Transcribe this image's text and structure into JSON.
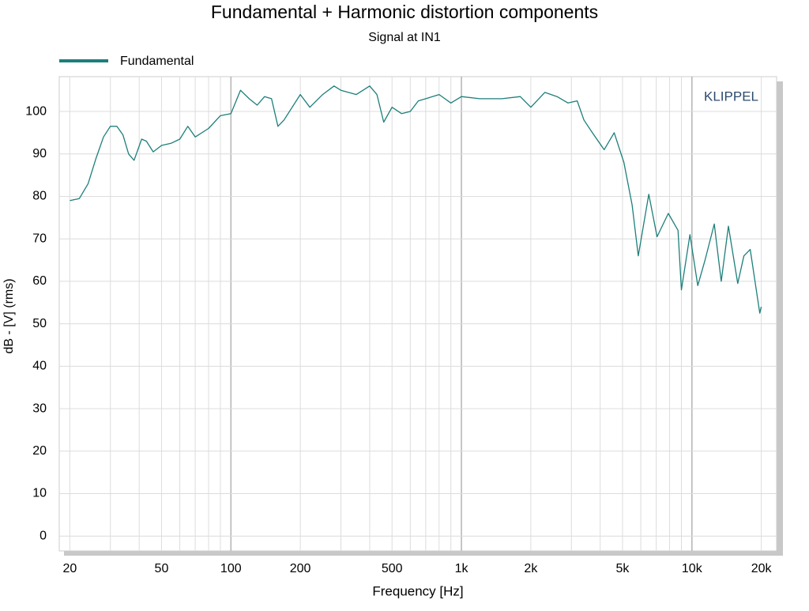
{
  "chart_data": {
    "type": "line",
    "title": "Fundamental + Harmonic distortion components",
    "subtitle": "Signal at IN1",
    "x_label": "Frequency [Hz]",
    "y_label": "dB - [V]  (rms)",
    "annotation": "KLIPPEL",
    "x_log": true,
    "grid": true,
    "legend": "top-left",
    "xlim": [
      18,
      23300
    ],
    "ylim": [
      -3.5,
      108.2
    ],
    "yticks": [
      0,
      10,
      20,
      30,
      40,
      50,
      60,
      70,
      80,
      90,
      100
    ],
    "xticks": [
      20,
      50,
      100,
      200,
      500,
      {
        "value": 1000,
        "label": "1k"
      },
      {
        "value": 2000,
        "label": "2k"
      },
      {
        "value": 5000,
        "label": "5k"
      },
      {
        "value": 10000,
        "label": "10k"
      },
      {
        "value": 20000,
        "label": "20k"
      }
    ],
    "xminor": [
      20,
      30,
      40,
      50,
      60,
      70,
      80,
      90,
      100,
      200,
      300,
      400,
      500,
      600,
      700,
      800,
      900,
      1000,
      2000,
      3000,
      4000,
      5000,
      6000,
      7000,
      8000,
      9000,
      10000,
      20000
    ],
    "xmajor": [
      100,
      1000,
      10000
    ],
    "x": [
      20,
      22,
      24,
      26,
      28,
      30,
      32,
      34,
      36,
      38,
      41,
      43,
      46,
      50,
      55,
      60,
      65,
      70,
      80,
      90,
      100,
      110,
      120,
      130,
      140,
      150,
      160,
      170,
      200,
      220,
      250,
      280,
      300,
      350,
      400,
      430,
      460,
      500,
      550,
      600,
      650,
      700,
      800,
      900,
      1000,
      1200,
      1500,
      1800,
      2000,
      2300,
      2600,
      2900,
      3180,
      3400,
      3700,
      4160,
      4600,
      5070,
      5500,
      5850,
      6500,
      7060,
      7900,
      8700,
      9000,
      9800,
      10600,
      11400,
      12500,
      13400,
      14400,
      15800,
      16800,
      17900,
      19700,
      20000
    ],
    "series": [
      {
        "name": "Fundamental",
        "color": "#1c7f7a",
        "values": [
          79,
          79.5,
          83,
          89,
          94,
          96.5,
          96.5,
          94.5,
          90,
          88.5,
          93.5,
          93,
          90.5,
          92,
          92.5,
          93.5,
          96.5,
          94,
          96,
          99,
          99.5,
          105,
          103,
          101.5,
          103.5,
          103,
          96.5,
          98,
          104,
          101,
          104,
          106,
          105,
          104,
          106,
          104,
          97.5,
          101,
          99.5,
          100,
          102.5,
          103,
          104,
          102,
          103.5,
          103,
          103,
          103.5,
          101,
          104.5,
          103.5,
          102,
          102.5,
          98,
          95,
          91,
          95,
          88,
          78,
          66,
          80.5,
          70.5,
          76,
          72,
          58,
          71,
          59,
          65,
          73.5,
          60,
          73,
          59.5,
          66,
          67.5,
          52.5,
          54
        ]
      }
    ]
  }
}
